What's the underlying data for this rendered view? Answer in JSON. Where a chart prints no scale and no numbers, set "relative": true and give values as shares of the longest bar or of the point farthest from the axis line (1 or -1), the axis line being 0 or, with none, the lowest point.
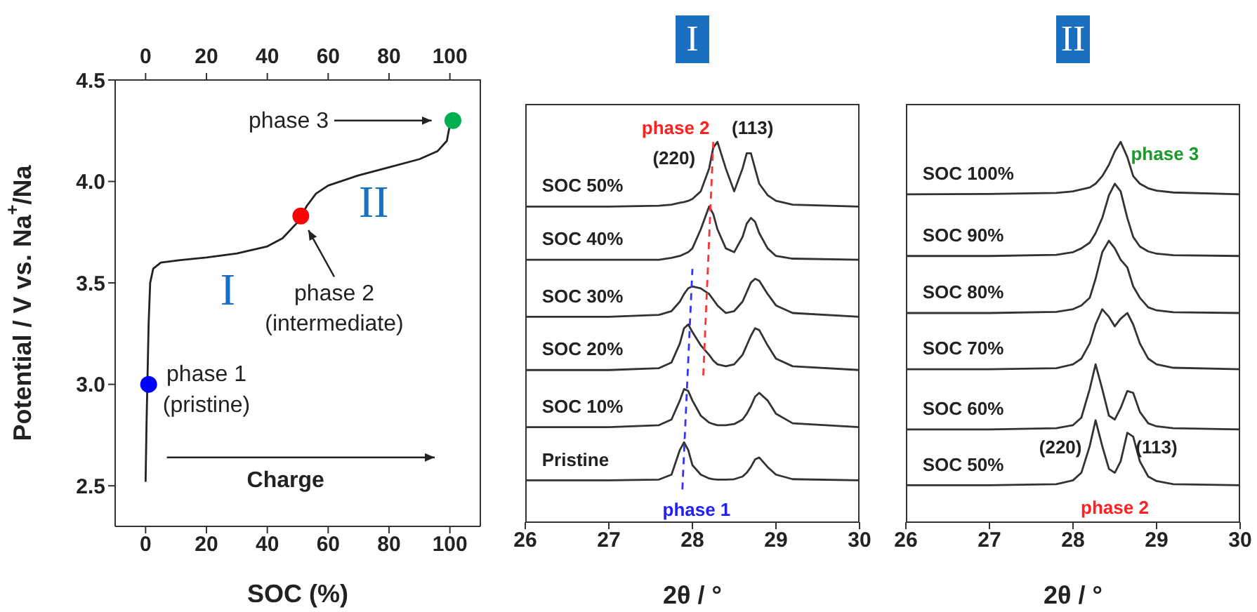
{
  "chart_data": [
    {
      "type": "line",
      "xlabel": "SOC (%)",
      "ylabel": "Potential / V vs. Na$^{+}$/Na",
      "xlim": [
        -10,
        110
      ],
      "xticks": [
        0,
        20,
        40,
        60,
        80,
        100
      ],
      "x2lim": [
        -10,
        110
      ],
      "x2ticks": [
        0,
        20,
        40,
        60,
        80,
        100
      ],
      "ylim": [
        2.3,
        4.5
      ],
      "yticks": [
        2.5,
        {
          "value": 3,
          "label": "3.0"
        },
        3.5,
        {
          "value": 4,
          "label": "4.0"
        },
        4.5
      ],
      "legend": false,
      "line_style": "solid",
      "series": [
        {
          "type": "line",
          "color": "#222222",
          "x": [
            0,
            0.3,
            1,
            1.5,
            2.5,
            5,
            10,
            20,
            30,
            40,
            45,
            50,
            53,
            56,
            60,
            70,
            80,
            90,
            96,
            99,
            100
          ],
          "values": [
            2.52,
            2.8,
            3.3,
            3.5,
            3.57,
            3.6,
            3.61,
            3.625,
            3.645,
            3.68,
            3.72,
            3.8,
            3.88,
            3.94,
            3.98,
            4.03,
            4.07,
            4.11,
            4.15,
            4.2,
            4.28
          ]
        },
        {
          "type": "scatter",
          "marker": "circle",
          "x": [
            1,
            51,
            101
          ],
          "values": [
            3.0,
            3.83,
            4.3
          ],
          "colors": [
            "#0000ff",
            "#ff0000",
            "#00b050"
          ]
        }
      ],
      "annotations": [
        "phase 1",
        "(pristine)",
        "phase 2",
        "(intermediate)",
        "phase 3",
        "Charge",
        "I",
        "II"
      ]
    },
    {
      "type": "line",
      "title": "I",
      "xlabel": "2θ / °",
      "xlim": [
        26,
        30
      ],
      "xticks": [
        26,
        27,
        28,
        29,
        30
      ],
      "relative": true,
      "tick_labels": "x",
      "legend": false,
      "line_style": "solid",
      "x": [
        26,
        27,
        27.6,
        27.75,
        27.85,
        27.9,
        27.95,
        28.0,
        28.1,
        28.2,
        28.25,
        28.3,
        28.4,
        28.5,
        28.6,
        28.65,
        28.7,
        28.75,
        28.8,
        28.9,
        29.0,
        29.2,
        30
      ],
      "series": [
        {
          "name": "Pristine",
          "color": "#333333",
          "values": [
            0.11,
            0.11,
            0.112,
            0.125,
            0.19,
            0.21,
            0.19,
            0.15,
            0.125,
            0.115,
            0.113,
            0.112,
            0.112,
            0.113,
            0.12,
            0.13,
            0.145,
            0.165,
            0.17,
            0.145,
            0.125,
            0.113,
            0.11
          ]
        },
        {
          "name": "SOC 10%",
          "color": "#333333",
          "values": [
            0.25,
            0.25,
            0.255,
            0.27,
            0.32,
            0.35,
            0.345,
            0.32,
            0.28,
            0.262,
            0.258,
            0.255,
            0.255,
            0.258,
            0.27,
            0.285,
            0.305,
            0.33,
            0.34,
            0.32,
            0.285,
            0.26,
            0.25
          ]
        },
        {
          "name": "SOC 20%",
          "color": "#333333",
          "values": [
            0.4,
            0.4,
            0.405,
            0.42,
            0.47,
            0.51,
            0.52,
            0.5,
            0.465,
            0.44,
            0.425,
            0.415,
            0.41,
            0.415,
            0.44,
            0.465,
            0.49,
            0.51,
            0.505,
            0.465,
            0.43,
            0.41,
            0.4
          ]
        },
        {
          "name": "SOC 30%",
          "color": "#333333",
          "values": [
            0.54,
            0.54,
            0.545,
            0.555,
            0.58,
            0.6,
            0.615,
            0.62,
            0.615,
            0.6,
            0.585,
            0.57,
            0.55,
            0.555,
            0.58,
            0.605,
            0.63,
            0.64,
            0.635,
            0.6,
            0.57,
            0.55,
            0.54
          ]
        },
        {
          "name": "SOC 40%",
          "color": "#333333",
          "values": [
            0.69,
            0.69,
            0.69,
            0.695,
            0.7,
            0.705,
            0.71,
            0.72,
            0.77,
            0.83,
            0.81,
            0.77,
            0.72,
            0.71,
            0.75,
            0.785,
            0.8,
            0.79,
            0.76,
            0.72,
            0.7,
            0.693,
            0.69
          ]
        },
        {
          "name": "SOC 50%",
          "color": "#333333",
          "values": [
            0.83,
            0.83,
            0.832,
            0.835,
            0.84,
            0.842,
            0.845,
            0.85,
            0.87,
            0.93,
            0.985,
            1.0,
            0.93,
            0.87,
            0.93,
            0.97,
            0.97,
            0.93,
            0.89,
            0.86,
            0.845,
            0.835,
            0.83
          ]
        },
        {
          "color": "#3333ff",
          "line_style": "dashed",
          "x": [
            27.88,
            28.0
          ],
          "values": [
            0.086,
            0.666
          ]
        },
        {
          "color": "#ff3333",
          "line_style": "dashed",
          "x": [
            28.13,
            28.25
          ],
          "values": [
            0.386,
            1.0
          ]
        }
      ],
      "annotations": [
        "phase 2",
        "(113)",
        "(220)",
        "phase 1"
      ]
    },
    {
      "type": "line",
      "title": "II",
      "xlabel": "2θ / °",
      "xlim": [
        26,
        30
      ],
      "xticks": [
        26,
        27,
        28,
        29,
        30
      ],
      "relative": true,
      "tick_labels": "x",
      "legend": false,
      "line_style": "solid",
      "x": [
        26,
        27,
        27.8,
        28.0,
        28.1,
        28.2,
        28.27,
        28.35,
        28.43,
        28.5,
        28.57,
        28.65,
        28.72,
        28.8,
        28.9,
        29.0,
        29.2,
        30
      ],
      "series": [
        {
          "name": "SOC 50%",
          "color": "#333333",
          "values": [
            0.097,
            0.097,
            0.1,
            0.11,
            0.13,
            0.2,
            0.268,
            0.2,
            0.14,
            0.13,
            0.16,
            0.235,
            0.225,
            0.16,
            0.12,
            0.108,
            0.1,
            0.097
          ]
        },
        {
          "name": "SOC 60%",
          "color": "#333333",
          "values": [
            0.244,
            0.244,
            0.247,
            0.255,
            0.275,
            0.35,
            0.415,
            0.35,
            0.28,
            0.27,
            0.3,
            0.345,
            0.34,
            0.29,
            0.26,
            0.252,
            0.247,
            0.244
          ]
        },
        {
          "name": "SOC 70%",
          "color": "#333333",
          "values": [
            0.402,
            0.402,
            0.405,
            0.415,
            0.43,
            0.47,
            0.52,
            0.56,
            0.54,
            0.515,
            0.535,
            0.55,
            0.52,
            0.47,
            0.43,
            0.415,
            0.406,
            0.402
          ]
        },
        {
          "name": "SOC 80%",
          "color": "#333333",
          "values": [
            0.55,
            0.55,
            0.553,
            0.56,
            0.57,
            0.59,
            0.64,
            0.71,
            0.74,
            0.72,
            0.69,
            0.67,
            0.62,
            0.59,
            0.565,
            0.557,
            0.552,
            0.55
          ]
        },
        {
          "name": "SOC 90%",
          "color": "#333333",
          "values": [
            0.7,
            0.7,
            0.703,
            0.71,
            0.72,
            0.735,
            0.76,
            0.8,
            0.86,
            0.89,
            0.87,
            0.8,
            0.75,
            0.725,
            0.712,
            0.706,
            0.702,
            0.7
          ]
        },
        {
          "name": "SOC 100%",
          "color": "#333333",
          "values": [
            0.862,
            0.863,
            0.866,
            0.87,
            0.875,
            0.88,
            0.89,
            0.91,
            0.94,
            0.975,
            1.0,
            0.96,
            0.91,
            0.89,
            0.878,
            0.872,
            0.867,
            0.862
          ]
        }
      ],
      "annotations": [
        "phase 3",
        "(220)",
        "(113)",
        "phase 2"
      ]
    }
  ]
}
